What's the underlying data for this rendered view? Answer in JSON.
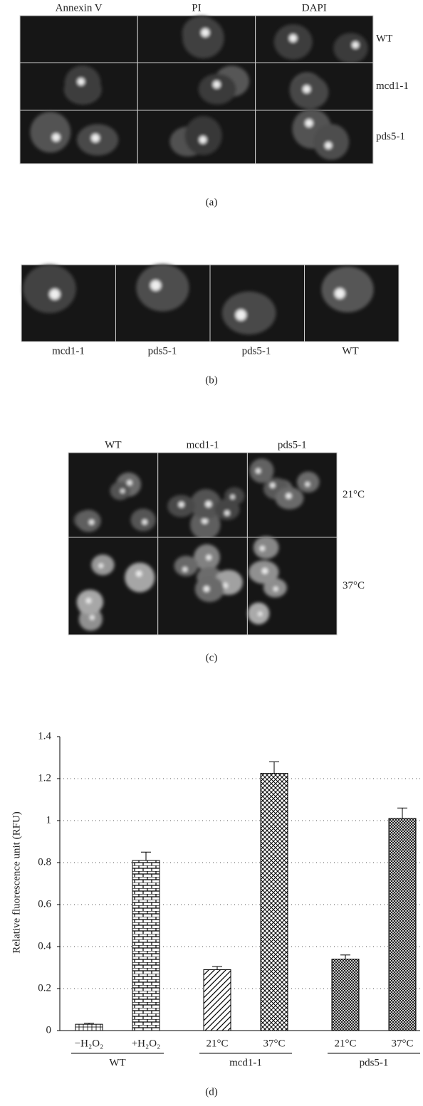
{
  "panel_a": {
    "columns": [
      "Annexin V",
      "PI",
      "DAPI"
    ],
    "rows": [
      "WT",
      "mcd1-1",
      "pds5-1"
    ],
    "caption": "(a)"
  },
  "panel_b": {
    "labels": [
      "mcd1-1",
      "pds5-1",
      "pds5-1",
      "WT"
    ],
    "caption": "(b)"
  },
  "panel_c": {
    "columns": [
      "WT",
      "mcd1-1",
      "pds5-1"
    ],
    "rows": [
      "21°C",
      "37°C"
    ],
    "caption": "(c)"
  },
  "chart_data": {
    "type": "bar",
    "y_label": "Relative fluorescence unit (RFU)",
    "caption": "(d)",
    "groups": [
      {
        "name": "WT",
        "categories": [
          "−H₂O₂",
          "+H₂O₂"
        ],
        "values": [
          0.03,
          0.81
        ],
        "errors": [
          0.005,
          0.04
        ]
      },
      {
        "name": "mcd1-1",
        "categories": [
          "21°C",
          "37°C"
        ],
        "values": [
          0.29,
          1.225
        ],
        "errors": [
          0.015,
          0.055
        ]
      },
      {
        "name": "pds5-1",
        "categories": [
          "21°C",
          "37°C"
        ],
        "values": [
          0.34,
          1.01
        ],
        "errors": [
          0.02,
          0.05
        ]
      }
    ],
    "ylim": [
      0,
      1.4
    ],
    "yticks": [
      0,
      0.2,
      0.4,
      0.6,
      0.8,
      1,
      1.2,
      1.4
    ],
    "grid": true
  }
}
